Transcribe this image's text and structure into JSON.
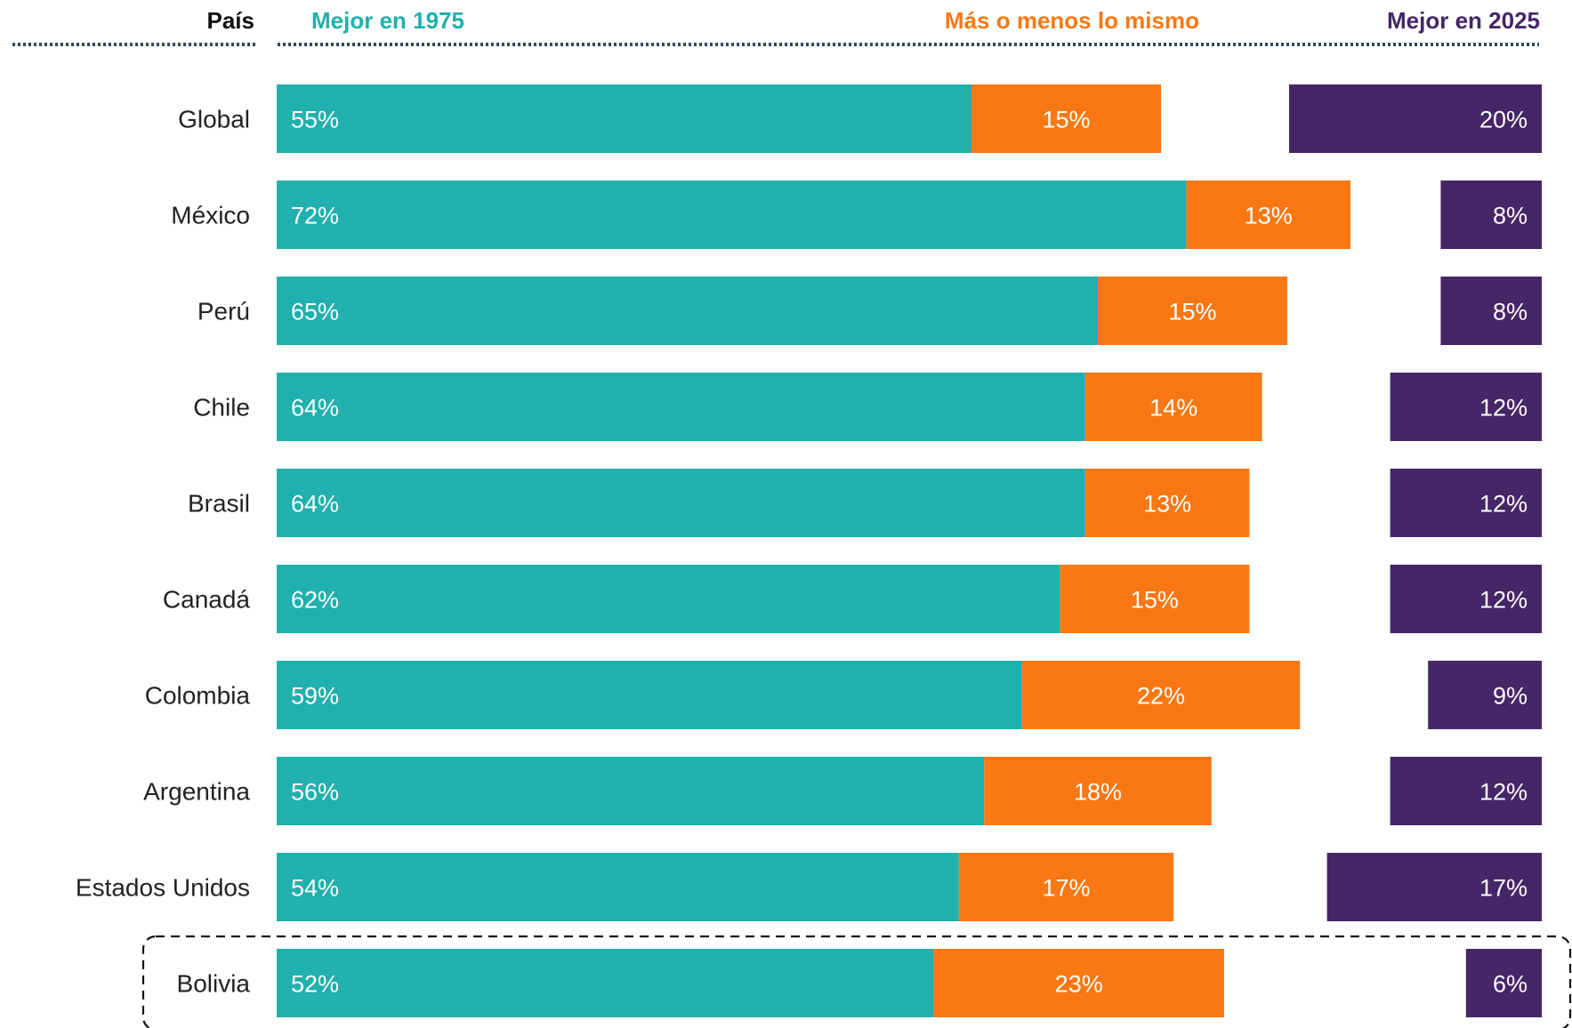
{
  "chart_data": {
    "type": "bar",
    "stacked": true,
    "orientation": "horizontal",
    "headers": {
      "country": "País",
      "better_1975": "Mejor en 1975",
      "same": "Más o menos lo mismo",
      "better_2025": "Mejor en 2025"
    },
    "categories": [
      "Global",
      "México",
      "Perú",
      "Chile",
      "Brasil",
      "Canadá",
      "Colombia",
      "Argentina",
      "Estados Unidos",
      "Bolivia"
    ],
    "series": [
      {
        "name": "Mejor en 1975",
        "color": "#20b0ad",
        "values": [
          55,
          72,
          65,
          64,
          64,
          62,
          59,
          56,
          54,
          52
        ]
      },
      {
        "name": "Más o menos lo mismo",
        "color": "#fa7813",
        "values": [
          15,
          13,
          15,
          14,
          13,
          15,
          22,
          18,
          17,
          23
        ]
      },
      {
        "name": "Mejor en 2025",
        "color": "#452667",
        "values": [
          20,
          8,
          8,
          12,
          12,
          12,
          9,
          12,
          17,
          6
        ]
      }
    ],
    "labels": [
      [
        "55%",
        "15%",
        "20%"
      ],
      [
        "72%",
        "13%",
        "8%"
      ],
      [
        "65%",
        "15%",
        "8%"
      ],
      [
        "64%",
        "14%",
        "12%"
      ],
      [
        "64%",
        "13%",
        "12%"
      ],
      [
        "62%",
        "15%",
        "12%"
      ],
      [
        "59%",
        "22%",
        "9%"
      ],
      [
        "56%",
        "18%",
        "12%"
      ],
      [
        "54%",
        "17%",
        "17%"
      ],
      [
        "52%",
        "23%",
        "6%"
      ]
    ],
    "highlighted": "Bolivia",
    "header_rule_color": "#2d4a5e"
  }
}
